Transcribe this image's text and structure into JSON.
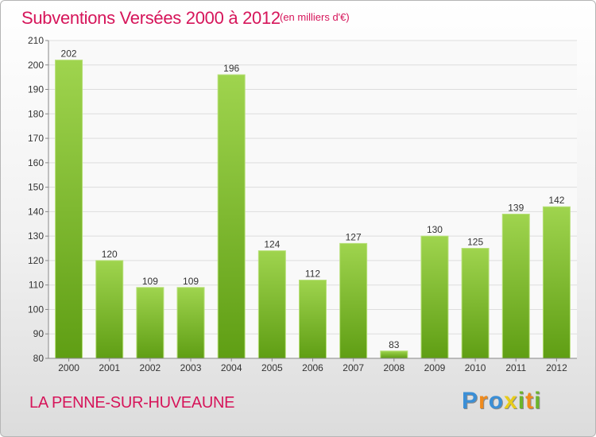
{
  "header": {
    "title": "Subventions Versées 2000 à 2012",
    "subtitle": "(en milliers d'€)"
  },
  "footer": {
    "place": "LA PENNE-SUR-HUVEAUNE",
    "brand_letters": [
      {
        "char": "P",
        "color": "#3b8fd6"
      },
      {
        "char": "r",
        "color": "#f08a1c"
      },
      {
        "char": "o",
        "color": "#3b8fd6"
      },
      {
        "char": "x",
        "color": "#e8cc1a"
      },
      {
        "char": "i",
        "color": "#6cb52b"
      },
      {
        "char": "t",
        "color": "#f08a1c"
      },
      {
        "char": "i",
        "color": "#6cb52b"
      }
    ]
  },
  "colors": {
    "bar_top": "#9fd44e",
    "bar_bottom": "#5f9e14",
    "accent": "#d6155a"
  },
  "chart_data": {
    "type": "bar",
    "categories": [
      "2000",
      "2001",
      "2002",
      "2003",
      "2004",
      "2005",
      "2006",
      "2007",
      "2008",
      "2009",
      "2010",
      "2011",
      "2012"
    ],
    "values": [
      202,
      120,
      109,
      109,
      196,
      124,
      112,
      127,
      83,
      130,
      125,
      139,
      142
    ],
    "ylim": [
      80,
      210
    ],
    "yticks": [
      80,
      90,
      100,
      110,
      120,
      130,
      140,
      150,
      160,
      170,
      180,
      190,
      200,
      210
    ],
    "grid": true
  }
}
